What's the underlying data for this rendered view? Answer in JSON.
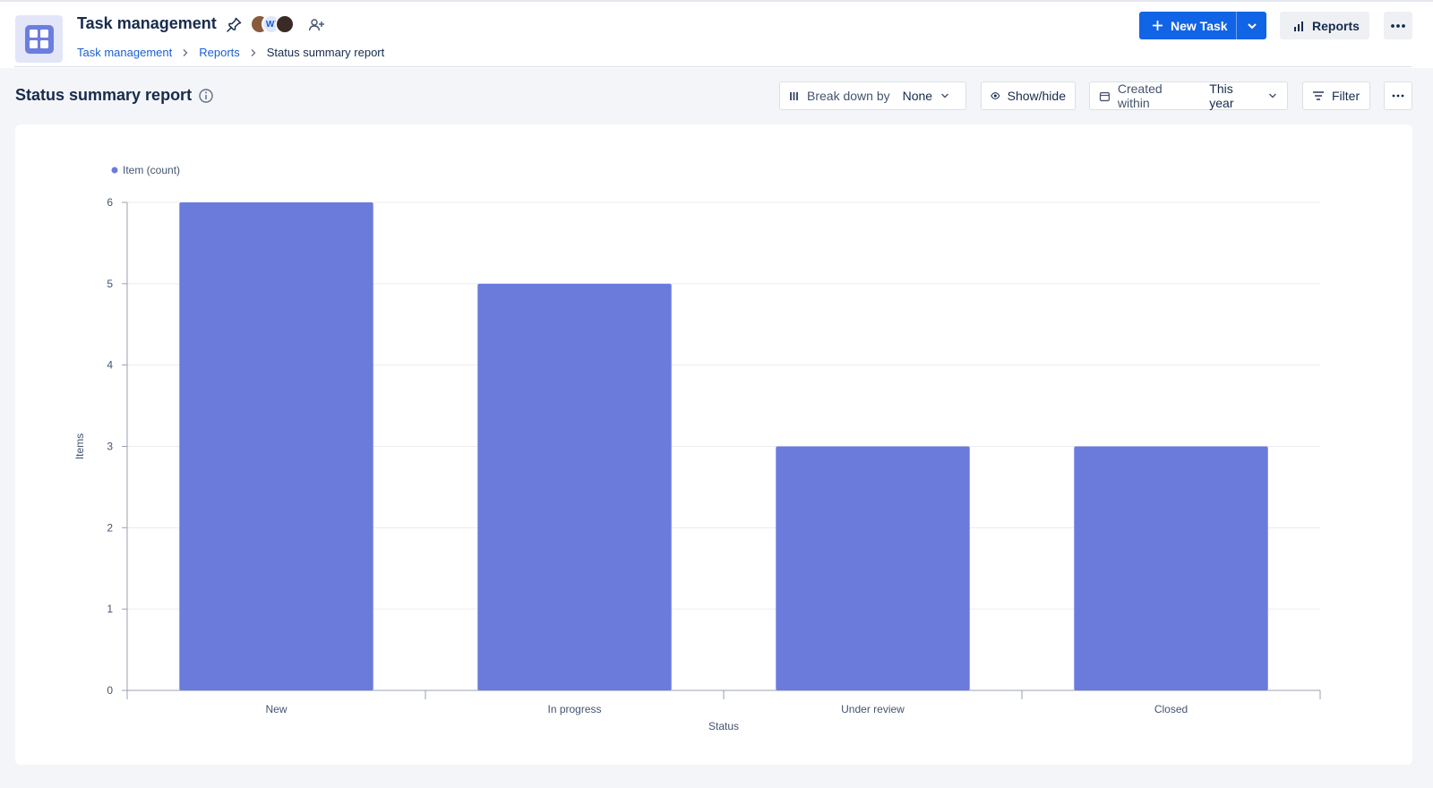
{
  "header": {
    "title": "Task management",
    "avatar_initials": "WI",
    "breadcrumb": [
      "Task management",
      "Reports",
      "Status summary report"
    ],
    "new_task_label": "New Task",
    "reports_label": "Reports"
  },
  "report": {
    "title": "Status summary report",
    "breakdown_label": "Break down by",
    "breakdown_value": "None",
    "show_hide_label": "Show/hide",
    "created_label": "Created within",
    "created_value": "This year",
    "filter_label": "Filter"
  },
  "colors": {
    "bar": "#6b7bdc",
    "primary_button": "#1264e6",
    "link": "#1a5fd6"
  },
  "icons": [
    "grid-icon",
    "pin-icon",
    "add-user-icon",
    "chevron-right-icon",
    "plus-icon",
    "chevron-down-icon",
    "bar-chart-icon",
    "more-icon",
    "info-icon",
    "breakdown-icon",
    "eye-icon",
    "calendar-icon",
    "filter-icon"
  ],
  "chart_data": {
    "type": "bar",
    "categories": [
      "New",
      "In progress",
      "Under review",
      "Closed"
    ],
    "series": [
      {
        "name": "Item (count)",
        "values": [
          6,
          5,
          3,
          3
        ]
      }
    ],
    "xlabel": "Status",
    "ylabel": "Items",
    "ylim": [
      0,
      6
    ],
    "yticks": [
      0,
      1,
      2,
      3,
      4,
      5,
      6
    ],
    "grid": true,
    "legend": "top-left"
  }
}
